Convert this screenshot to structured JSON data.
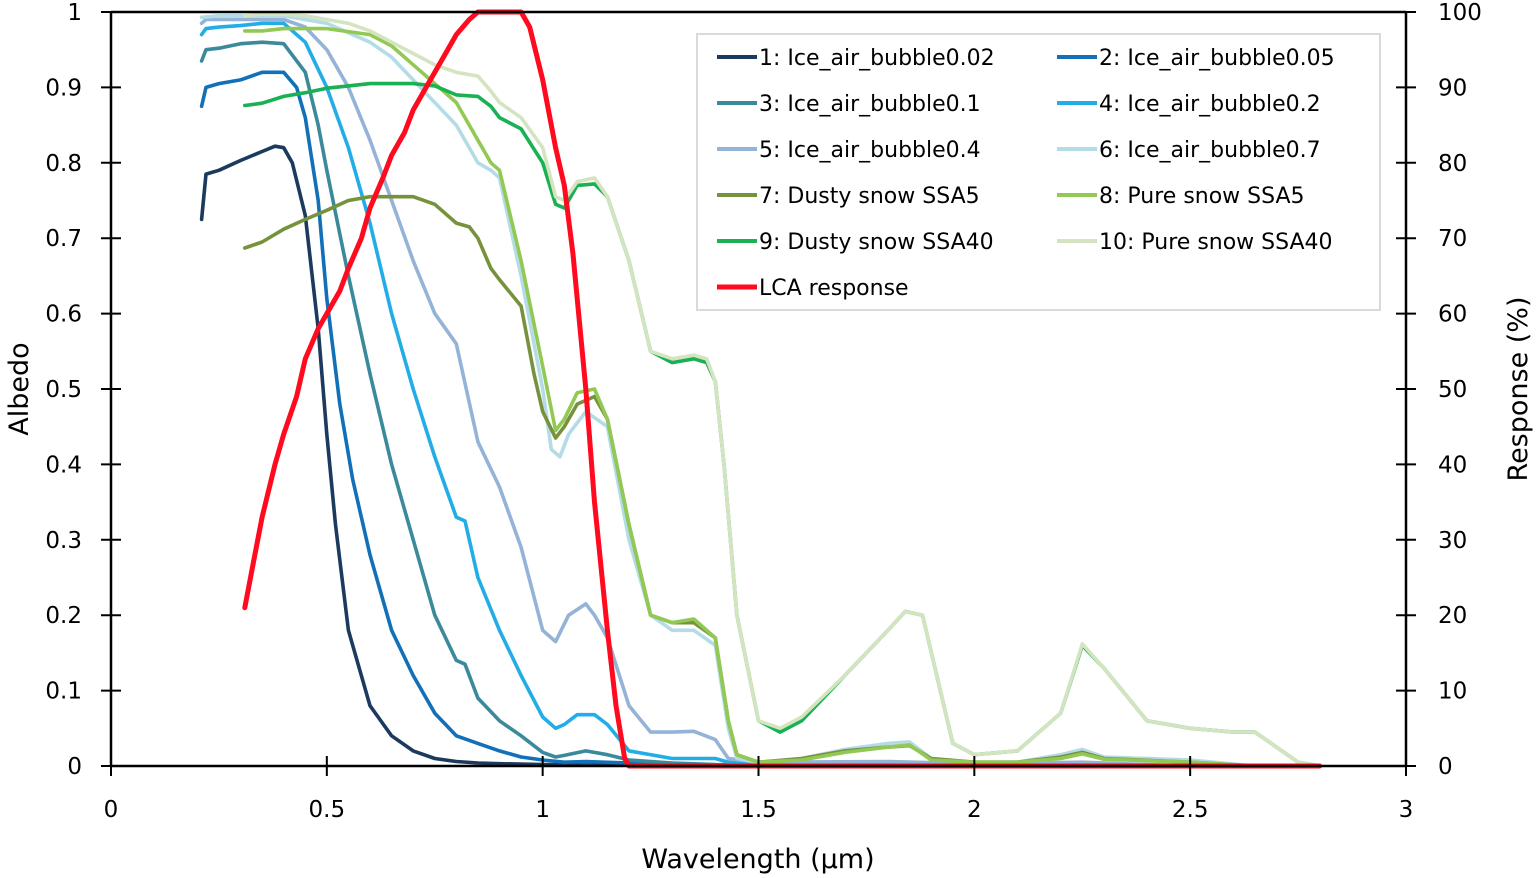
{
  "chart_data": {
    "type": "line",
    "title": "",
    "xlabel": "Wavelength (µm)",
    "ylabel": "Albedo",
    "y2label": "Response (%)",
    "xlim": [
      0,
      3
    ],
    "ylim": [
      0,
      1
    ],
    "y2lim": [
      0,
      100
    ],
    "x_ticks": [
      "0",
      "0.5",
      "1",
      "1.5",
      "2",
      "2.5",
      "3"
    ],
    "x_tick_values": [
      0,
      0.5,
      1,
      1.5,
      2,
      2.5,
      3
    ],
    "y_ticks": [
      "0",
      "0.1",
      "0.2",
      "0.3",
      "0.4",
      "0.5",
      "0.6",
      "0.7",
      "0.8",
      "0.9",
      "1"
    ],
    "y_tick_values": [
      0,
      0.1,
      0.2,
      0.3,
      0.4,
      0.5,
      0.6,
      0.7,
      0.8,
      0.9,
      1
    ],
    "y2_ticks": [
      "0",
      "10",
      "20",
      "30",
      "40",
      "50",
      "60",
      "70",
      "80",
      "90",
      "100"
    ],
    "y2_tick_values": [
      0,
      10,
      20,
      30,
      40,
      50,
      60,
      70,
      80,
      90,
      100
    ],
    "grid": false,
    "legend_position": "top-right",
    "series": [
      {
        "name": "1: Ice_air_bubble0.02",
        "color": "#1b3a5e",
        "axis": "left",
        "x": [
          0.21,
          0.22,
          0.25,
          0.3,
          0.35,
          0.38,
          0.4,
          0.42,
          0.45,
          0.48,
          0.5,
          0.52,
          0.55,
          0.6,
          0.65,
          0.7,
          0.75,
          0.8,
          0.85,
          0.9,
          1.0,
          1.1,
          1.2,
          1.4,
          2.0,
          2.5
        ],
        "y": [
          0.725,
          0.785,
          0.79,
          0.803,
          0.815,
          0.822,
          0.82,
          0.8,
          0.73,
          0.58,
          0.44,
          0.32,
          0.18,
          0.08,
          0.04,
          0.02,
          0.01,
          0.006,
          0.004,
          0.003,
          0.002,
          0.001,
          0.001,
          0.0,
          0.0,
          0.0
        ]
      },
      {
        "name": "2: Ice_air_bubble0.05",
        "color": "#1170b8",
        "axis": "left",
        "x": [
          0.21,
          0.22,
          0.25,
          0.3,
          0.35,
          0.4,
          0.43,
          0.45,
          0.48,
          0.5,
          0.53,
          0.56,
          0.6,
          0.65,
          0.7,
          0.75,
          0.8,
          0.85,
          0.9,
          0.95,
          1.0,
          1.05,
          1.1,
          1.2,
          1.4,
          2.0,
          2.5
        ],
        "y": [
          0.875,
          0.9,
          0.905,
          0.91,
          0.92,
          0.92,
          0.9,
          0.86,
          0.75,
          0.62,
          0.48,
          0.38,
          0.28,
          0.18,
          0.12,
          0.07,
          0.04,
          0.03,
          0.02,
          0.012,
          0.008,
          0.005,
          0.006,
          0.004,
          0.001,
          0.0,
          0.0
        ]
      },
      {
        "name": "3: Ice_air_bubble0.1",
        "color": "#3b8a9b",
        "axis": "left",
        "x": [
          0.21,
          0.22,
          0.25,
          0.3,
          0.35,
          0.4,
          0.45,
          0.48,
          0.5,
          0.55,
          0.6,
          0.65,
          0.7,
          0.75,
          0.8,
          0.82,
          0.85,
          0.9,
          0.95,
          1.0,
          1.03,
          1.05,
          1.1,
          1.15,
          1.2,
          1.3,
          1.4,
          2.0,
          2.5
        ],
        "y": [
          0.935,
          0.95,
          0.952,
          0.958,
          0.96,
          0.958,
          0.92,
          0.85,
          0.79,
          0.65,
          0.52,
          0.4,
          0.3,
          0.2,
          0.14,
          0.135,
          0.09,
          0.06,
          0.04,
          0.018,
          0.012,
          0.014,
          0.02,
          0.015,
          0.008,
          0.004,
          0.002,
          0.0,
          0.0
        ]
      },
      {
        "name": "4: Ice_air_bubble0.2",
        "color": "#22ade6",
        "axis": "left",
        "x": [
          0.21,
          0.22,
          0.25,
          0.3,
          0.35,
          0.4,
          0.45,
          0.5,
          0.55,
          0.6,
          0.65,
          0.7,
          0.75,
          0.8,
          0.82,
          0.85,
          0.9,
          0.95,
          1.0,
          1.03,
          1.05,
          1.08,
          1.12,
          1.15,
          1.2,
          1.3,
          1.4,
          1.43,
          1.5,
          2.0,
          2.5
        ],
        "y": [
          0.97,
          0.978,
          0.98,
          0.982,
          0.985,
          0.985,
          0.96,
          0.9,
          0.82,
          0.72,
          0.6,
          0.5,
          0.41,
          0.33,
          0.325,
          0.25,
          0.18,
          0.12,
          0.065,
          0.05,
          0.055,
          0.068,
          0.068,
          0.055,
          0.02,
          0.01,
          0.01,
          0.005,
          0.002,
          0.001,
          0.0
        ]
      },
      {
        "name": "5: Ice_air_bubble0.4",
        "color": "#94b3d7",
        "axis": "left",
        "x": [
          0.21,
          0.22,
          0.25,
          0.3,
          0.35,
          0.4,
          0.45,
          0.5,
          0.55,
          0.6,
          0.65,
          0.7,
          0.75,
          0.8,
          0.85,
          0.9,
          0.95,
          1.0,
          1.03,
          1.06,
          1.1,
          1.12,
          1.15,
          1.2,
          1.25,
          1.3,
          1.35,
          1.4,
          1.43,
          1.5,
          1.8,
          2.0,
          2.25,
          2.5
        ],
        "y": [
          0.985,
          0.99,
          0.99,
          0.99,
          0.99,
          0.99,
          0.98,
          0.95,
          0.9,
          0.83,
          0.75,
          0.67,
          0.6,
          0.56,
          0.43,
          0.37,
          0.29,
          0.18,
          0.165,
          0.2,
          0.215,
          0.2,
          0.17,
          0.08,
          0.045,
          0.045,
          0.046,
          0.035,
          0.01,
          0.005,
          0.006,
          0.003,
          0.005,
          0.0
        ]
      },
      {
        "name": "6: Ice_air_bubble0.7",
        "color": "#b4dce6",
        "axis": "left",
        "x": [
          0.21,
          0.25,
          0.3,
          0.4,
          0.5,
          0.6,
          0.65,
          0.7,
          0.8,
          0.85,
          0.88,
          0.9,
          0.95,
          1.0,
          1.02,
          1.04,
          1.06,
          1.1,
          1.15,
          1.2,
          1.25,
          1.3,
          1.35,
          1.4,
          1.43,
          1.45,
          1.5,
          1.6,
          1.7,
          1.8,
          1.85,
          1.9,
          2.0,
          2.1,
          2.2,
          2.25,
          2.3,
          2.5,
          2.65
        ],
        "y": [
          0.993,
          0.995,
          0.995,
          0.995,
          0.985,
          0.96,
          0.94,
          0.91,
          0.85,
          0.8,
          0.79,
          0.78,
          0.65,
          0.5,
          0.42,
          0.41,
          0.44,
          0.47,
          0.45,
          0.3,
          0.2,
          0.18,
          0.18,
          0.16,
          0.05,
          0.01,
          0.005,
          0.01,
          0.022,
          0.03,
          0.032,
          0.01,
          0.005,
          0.005,
          0.015,
          0.022,
          0.012,
          0.008,
          0.0
        ]
      },
      {
        "name": "7: Dusty snow SSA5",
        "color": "#76923c",
        "axis": "left",
        "x": [
          0.31,
          0.35,
          0.4,
          0.45,
          0.5,
          0.55,
          0.6,
          0.65,
          0.7,
          0.75,
          0.8,
          0.83,
          0.85,
          0.88,
          0.9,
          0.95,
          0.98,
          1.0,
          1.03,
          1.05,
          1.08,
          1.12,
          1.15,
          1.2,
          1.25,
          1.3,
          1.35,
          1.4,
          1.43,
          1.45,
          1.5,
          1.6,
          1.7,
          1.8,
          1.85,
          1.9,
          2.0,
          2.1,
          2.2,
          2.25,
          2.3,
          2.5,
          2.65
        ],
        "y": [
          0.687,
          0.695,
          0.712,
          0.725,
          0.737,
          0.75,
          0.755,
          0.755,
          0.755,
          0.745,
          0.72,
          0.715,
          0.7,
          0.66,
          0.645,
          0.61,
          0.52,
          0.47,
          0.435,
          0.45,
          0.48,
          0.49,
          0.46,
          0.32,
          0.2,
          0.19,
          0.19,
          0.17,
          0.06,
          0.015,
          0.005,
          0.01,
          0.02,
          0.025,
          0.027,
          0.01,
          0.005,
          0.005,
          0.012,
          0.018,
          0.01,
          0.005,
          0.0
        ]
      },
      {
        "name": "8: Pure snow SSA5",
        "color": "#92c954",
        "axis": "left",
        "x": [
          0.31,
          0.35,
          0.4,
          0.5,
          0.6,
          0.65,
          0.7,
          0.75,
          0.8,
          0.85,
          0.88,
          0.9,
          0.95,
          1.0,
          1.03,
          1.05,
          1.08,
          1.12,
          1.15,
          1.2,
          1.25,
          1.3,
          1.35,
          1.4,
          1.43,
          1.45,
          1.5,
          1.6,
          1.7,
          1.8,
          1.85,
          1.9,
          2.0,
          2.1,
          2.2,
          2.25,
          2.3,
          2.5,
          2.65
        ],
        "y": [
          0.975,
          0.975,
          0.978,
          0.978,
          0.97,
          0.955,
          0.93,
          0.905,
          0.88,
          0.83,
          0.8,
          0.79,
          0.67,
          0.53,
          0.445,
          0.46,
          0.495,
          0.5,
          0.46,
          0.32,
          0.2,
          0.19,
          0.195,
          0.17,
          0.06,
          0.015,
          0.005,
          0.008,
          0.018,
          0.025,
          0.028,
          0.008,
          0.005,
          0.005,
          0.01,
          0.016,
          0.009,
          0.005,
          0.0
        ]
      },
      {
        "name": "9: Dusty snow SSA40",
        "color": "#1ab054",
        "axis": "left",
        "x": [
          0.31,
          0.35,
          0.4,
          0.45,
          0.5,
          0.55,
          0.6,
          0.65,
          0.7,
          0.75,
          0.8,
          0.85,
          0.88,
          0.9,
          0.95,
          1.0,
          1.03,
          1.05,
          1.08,
          1.12,
          1.15,
          1.2,
          1.25,
          1.3,
          1.35,
          1.38,
          1.4,
          1.42,
          1.45,
          1.5,
          1.55,
          1.6,
          1.7,
          1.8,
          1.84,
          1.88,
          1.95,
          2.0,
          2.1,
          2.2,
          2.25,
          2.3,
          2.4,
          2.5,
          2.6,
          2.65,
          2.7,
          2.75,
          2.8
        ],
        "y": [
          0.876,
          0.879,
          0.888,
          0.893,
          0.899,
          0.902,
          0.905,
          0.905,
          0.905,
          0.902,
          0.89,
          0.888,
          0.875,
          0.86,
          0.845,
          0.8,
          0.745,
          0.74,
          0.77,
          0.772,
          0.755,
          0.67,
          0.55,
          0.535,
          0.54,
          0.535,
          0.51,
          0.4,
          0.2,
          0.06,
          0.045,
          0.06,
          0.12,
          0.18,
          0.205,
          0.2,
          0.03,
          0.015,
          0.02,
          0.07,
          0.16,
          0.13,
          0.06,
          0.05,
          0.045,
          0.045,
          0.025,
          0.005,
          0.0
        ]
      },
      {
        "name": "10: Pure snow SSA40",
        "color": "#d4e4c1",
        "axis": "left",
        "x": [
          0.31,
          0.35,
          0.4,
          0.45,
          0.5,
          0.55,
          0.6,
          0.65,
          0.7,
          0.75,
          0.8,
          0.85,
          0.88,
          0.9,
          0.95,
          1.0,
          1.03,
          1.05,
          1.08,
          1.12,
          1.15,
          1.2,
          1.25,
          1.3,
          1.35,
          1.38,
          1.4,
          1.42,
          1.45,
          1.5,
          1.55,
          1.6,
          1.7,
          1.8,
          1.84,
          1.88,
          1.95,
          2.0,
          2.1,
          2.2,
          2.25,
          2.3,
          2.4,
          2.5,
          2.6,
          2.65,
          2.7,
          2.75,
          2.8
        ],
        "y": [
          0.995,
          0.997,
          0.997,
          0.995,
          0.99,
          0.985,
          0.975,
          0.96,
          0.945,
          0.93,
          0.92,
          0.915,
          0.895,
          0.88,
          0.86,
          0.82,
          0.755,
          0.75,
          0.775,
          0.78,
          0.755,
          0.67,
          0.55,
          0.54,
          0.545,
          0.54,
          0.51,
          0.4,
          0.2,
          0.06,
          0.05,
          0.065,
          0.12,
          0.18,
          0.205,
          0.2,
          0.03,
          0.015,
          0.02,
          0.07,
          0.162,
          0.13,
          0.06,
          0.05,
          0.045,
          0.045,
          0.025,
          0.005,
          0.0
        ]
      },
      {
        "name": "LCA response",
        "color": "#ff0a1e",
        "axis": "right",
        "x": [
          0.31,
          0.33,
          0.35,
          0.38,
          0.4,
          0.43,
          0.45,
          0.48,
          0.5,
          0.53,
          0.55,
          0.58,
          0.6,
          0.63,
          0.65,
          0.68,
          0.7,
          0.73,
          0.75,
          0.78,
          0.8,
          0.83,
          0.85,
          0.88,
          0.9,
          0.95,
          0.97,
          1.0,
          1.03,
          1.05,
          1.07,
          1.1,
          1.12,
          1.15,
          1.17,
          1.19,
          1.2,
          1.25,
          1.4,
          2.0,
          2.5,
          2.8
        ],
        "y": [
          21,
          27,
          33,
          40,
          44,
          49,
          54,
          58,
          60,
          63,
          66,
          70,
          74,
          78,
          81,
          84,
          87,
          90,
          92,
          95,
          97,
          99,
          100,
          100,
          100,
          100,
          98,
          91,
          82,
          77,
          68,
          50,
          35,
          18,
          8,
          1,
          0,
          0,
          0,
          0,
          0,
          0
        ]
      }
    ]
  }
}
